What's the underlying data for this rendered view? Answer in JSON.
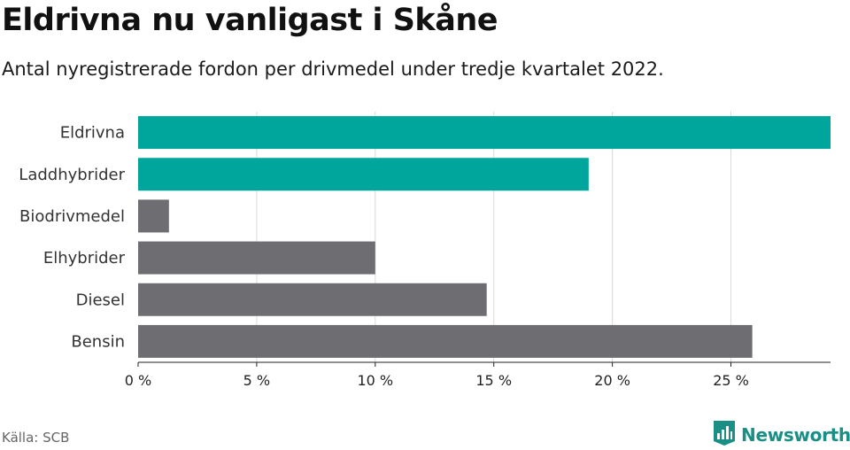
{
  "title": "Eldrivna nu vanligast i Skåne",
  "subtitle": "Antal nyregistrerade fordon per drivmedel under tredje kvartalet 2022.",
  "source": "Källa: SCB",
  "brand": {
    "name": "Newsworthy",
    "icon": "bar-chart-flag-icon",
    "color": "#1a8f86"
  },
  "colors": {
    "highlight": "#00a59b",
    "other": "#6e6d72",
    "grid": "#d9d9d9",
    "axis": "#222222"
  },
  "chart_data": {
    "type": "bar",
    "orientation": "horizontal",
    "categories": [
      "Eldrivna",
      "Laddhybrider",
      "Biodrivmedel",
      "Elhybrider",
      "Diesel",
      "Bensin"
    ],
    "values": [
      29.2,
      19.0,
      1.3,
      10.0,
      14.7,
      25.9
    ],
    "highlighted": [
      true,
      true,
      false,
      false,
      false,
      false
    ],
    "unit": "%",
    "xlim": [
      0,
      29.2
    ],
    "xticks": [
      0,
      5,
      10,
      15,
      20,
      25
    ],
    "xtick_labels": [
      "0 %",
      "5 %",
      "10 %",
      "15 %",
      "20 %",
      "25 %"
    ],
    "grid": true
  }
}
